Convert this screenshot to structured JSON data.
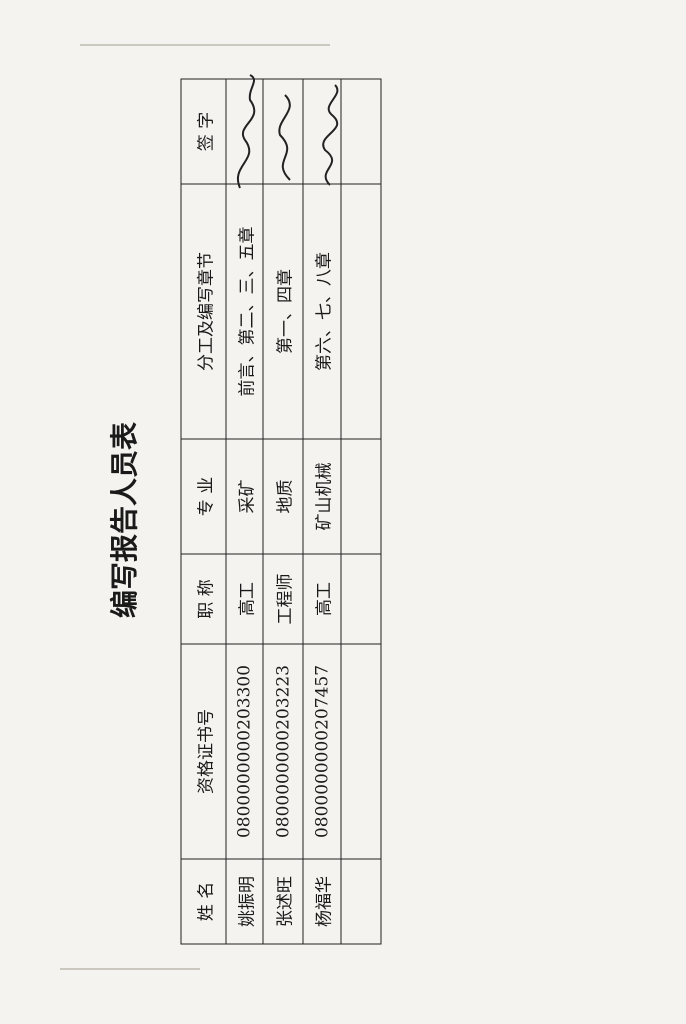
{
  "title": "编写报告人员表",
  "table": {
    "header": [
      "姓 名",
      "资格证书号",
      "职 称",
      "专 业",
      "分工及编写章节",
      "签 字"
    ],
    "rows": [
      [
        "姚振明",
        "0800000000203300",
        "高工",
        "采矿",
        "前言、第二、三、五章"
      ],
      [
        "张述旺",
        "0800000000203223",
        "工程师",
        "地质",
        "第一、四章"
      ],
      [
        "杨福华",
        "0800000000207457",
        "高工",
        "矿山机械",
        "第六、七、八章"
      ]
    ]
  }
}
